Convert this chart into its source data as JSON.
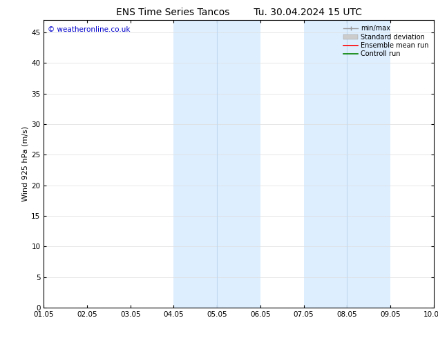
{
  "title_left": "ENS Time Series Tancos",
  "title_right": "Tu. 30.04.2024 15 UTC",
  "ylabel": "Wind 925 hPa (m/s)",
  "xlabel_ticks": [
    "01.05",
    "02.05",
    "03.05",
    "04.05",
    "05.05",
    "06.05",
    "07.05",
    "08.05",
    "09.05",
    "10.05"
  ],
  "xlim": [
    0,
    9
  ],
  "ylim": [
    0,
    47
  ],
  "yticks": [
    0,
    5,
    10,
    15,
    20,
    25,
    30,
    35,
    40,
    45
  ],
  "shaded_bands": [
    {
      "xmin": 3.0,
      "xmax": 5.0
    },
    {
      "xmin": 6.0,
      "xmax": 8.0
    }
  ],
  "divider_lines": [
    4.0,
    7.0
  ],
  "shaded_color": "#ddeeff",
  "divider_color": "#c0d8ee",
  "watermark_text": "© weatheronline.co.uk",
  "watermark_color": "#0000cc",
  "background_color": "#ffffff",
  "title_fontsize": 10,
  "tick_fontsize": 7.5,
  "ylabel_fontsize": 8,
  "watermark_fontsize": 7.5,
  "legend_fontsize": 7,
  "legend_items": [
    {
      "label": "min/max",
      "color": "#999999"
    },
    {
      "label": "Standard deviation",
      "color": "#cccccc"
    },
    {
      "label": "Ensemble mean run",
      "color": "#ff0000"
    },
    {
      "label": "Controll run",
      "color": "#008000"
    }
  ]
}
